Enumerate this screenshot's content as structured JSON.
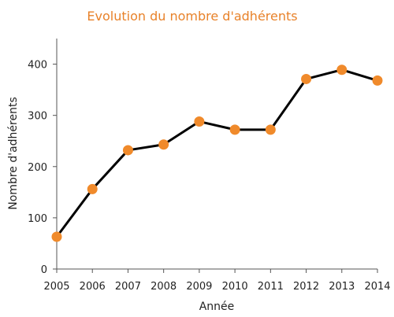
{
  "chart_data": {
    "type": "line",
    "title": "Evolution du nombre d'adhérents",
    "xlabel": "Année",
    "ylabel": "Nombre d'adhérents",
    "categories": [
      "2005",
      "2006",
      "2007",
      "2008",
      "2009",
      "2010",
      "2011",
      "2012",
      "2013",
      "2014"
    ],
    "series": [
      {
        "values": [
          63,
          156,
          232,
          243,
          288,
          272,
          272,
          371,
          389,
          368
        ]
      }
    ],
    "ylim": [
      0,
      450
    ],
    "yticks": [
      "0",
      "100",
      "200",
      "300",
      "400"
    ],
    "grid": false,
    "legend": "none",
    "colors": {
      "title": "#E8822A",
      "line": "#000000",
      "marker": "#F08A2B",
      "axis": "#555555",
      "text": "#222222"
    }
  }
}
